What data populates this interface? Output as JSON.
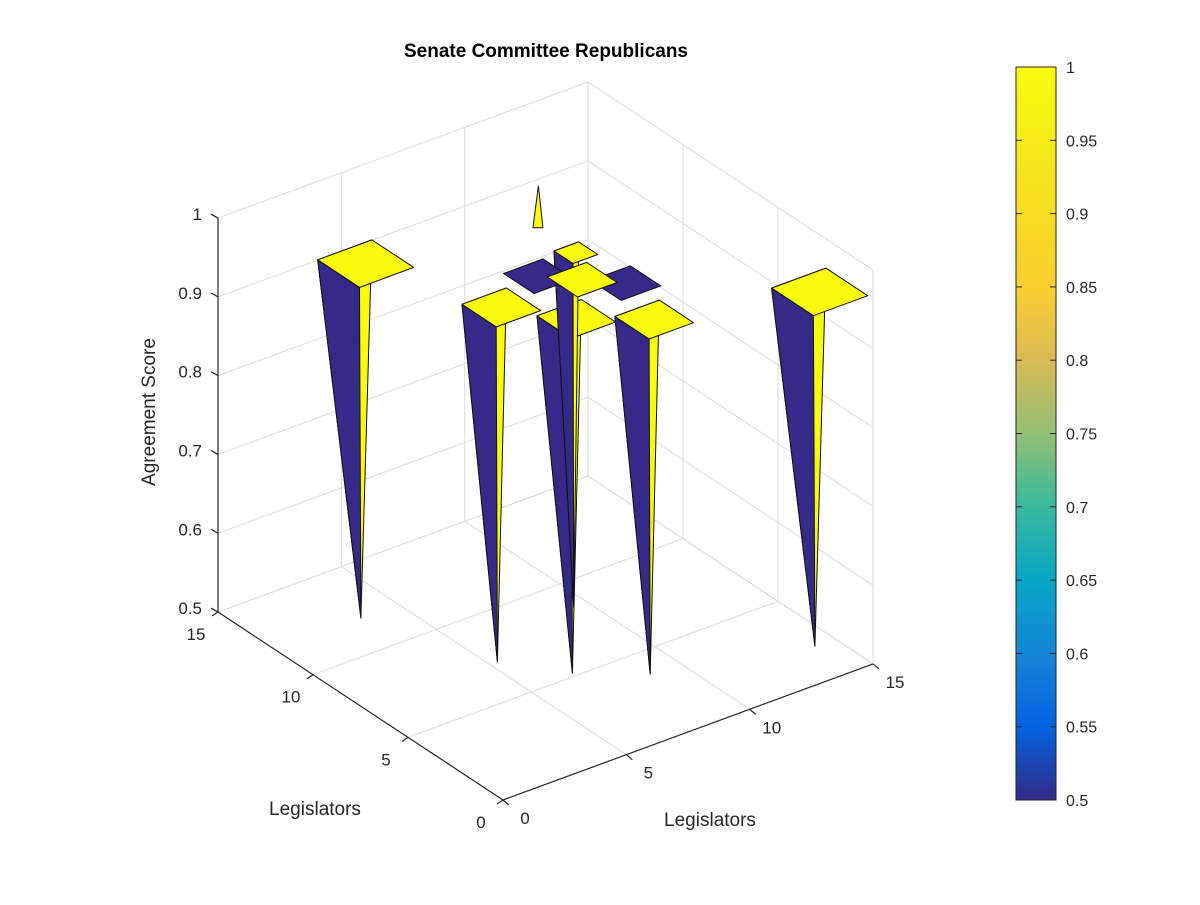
{
  "chart_data": {
    "type": "surface3d",
    "title": "Senate Committee Republicans",
    "xlabel": "Legislators",
    "ylabel": "Legislators",
    "zlabel": "Agreement Score",
    "xlim": [
      0,
      15
    ],
    "ylim": [
      0,
      15
    ],
    "zlim": [
      0.5,
      1
    ],
    "xticks": [
      "0",
      "5",
      "10",
      "15"
    ],
    "yticks": [
      "0",
      "5",
      "10",
      "15"
    ],
    "zticks": [
      "0.5",
      "0.6",
      "0.7",
      "0.8",
      "0.9",
      "1"
    ],
    "colorbar": {
      "range": [
        0.5,
        1
      ],
      "ticks": [
        "0.5",
        "0.55",
        "0.6",
        "0.65",
        "0.7",
        "0.75",
        "0.8",
        "0.85",
        "0.9",
        "0.95",
        "1"
      ],
      "colormap": "parula"
    },
    "colors": {
      "low": "#352a87",
      "high": "#f9fb0e"
    },
    "surface": {
      "note_groups": "value 1 = yellow, value 0.5 = dark blue",
      "grid_x": [
        1,
        2,
        3,
        4,
        5,
        6,
        7,
        8,
        9,
        10,
        11,
        12
      ],
      "grid_y": [
        1,
        2,
        3,
        4,
        5,
        6,
        7,
        8,
        9,
        10,
        11,
        12
      ],
      "z_high": 0.95,
      "z_low": 0.5
    }
  }
}
